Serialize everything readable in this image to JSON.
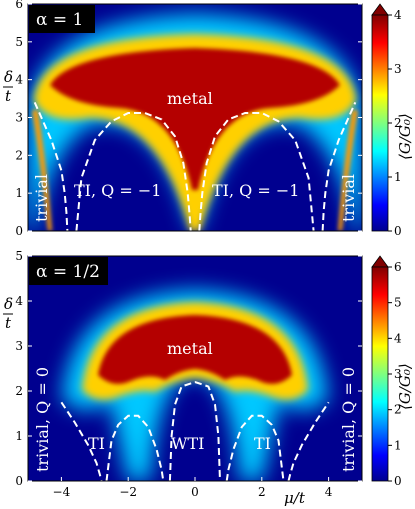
{
  "chart_data": [
    {
      "type": "heatmap",
      "tag": "α = 1",
      "xlim": [
        -5,
        5
      ],
      "ylim": [
        0,
        6
      ],
      "yticks": [
        "0",
        "1",
        "2",
        "3",
        "4",
        "5",
        "6"
      ],
      "ylabel_num": "δ",
      "ylabel_den": "t",
      "colorbar": {
        "label": "⟨G/G₀⟩",
        "range": [
          0,
          4
        ],
        "ticks": [
          "0",
          "1",
          "2",
          "3",
          "4"
        ]
      },
      "regions": [
        "metal",
        "TI, Q = −1",
        "TI, Q = −1",
        "trivial",
        "trivial"
      ],
      "phase_boundaries": [
        {
          "x": [
            -4.8,
            -4.6,
            -4.3,
            -4.0,
            -3.9,
            -3.85,
            -3.82
          ],
          "y": [
            3.4,
            3.0,
            2.4,
            1.6,
            1.0,
            0.5,
            0.0
          ]
        },
        {
          "x": [
            -3.55,
            -3.4,
            -3.0,
            -2.5,
            -2.0,
            -1.5,
            -1.0,
            -0.6,
            -0.35,
            -0.22,
            -0.16,
            -0.13
          ],
          "y": [
            0.0,
            1.4,
            2.4,
            2.9,
            3.12,
            3.12,
            2.95,
            2.5,
            1.8,
            1.0,
            0.4,
            0.0
          ]
        },
        {
          "x": [
            0.13,
            0.16,
            0.22,
            0.35,
            0.6,
            1.0,
            1.5,
            2.0,
            2.5,
            3.0,
            3.4,
            3.55
          ],
          "y": [
            0.0,
            0.4,
            1.0,
            1.8,
            2.5,
            2.95,
            3.12,
            3.12,
            2.9,
            2.4,
            1.4,
            0.0
          ]
        },
        {
          "x": [
            3.82,
            3.85,
            3.9,
            4.0,
            4.3,
            4.6,
            4.8
          ],
          "y": [
            0.0,
            0.5,
            1.0,
            1.6,
            2.4,
            3.0,
            3.4
          ]
        }
      ]
    },
    {
      "type": "heatmap",
      "tag": "α = 1/2",
      "xlim": [
        -5,
        5
      ],
      "ylim": [
        0,
        5
      ],
      "xticks": [
        "−4",
        "−2",
        "0",
        "2",
        "4"
      ],
      "yticks": [
        "0",
        "1",
        "2",
        "3",
        "4",
        "5"
      ],
      "xlabel_num": "μ",
      "xlabel_den": "t",
      "ylabel_num": "δ",
      "ylabel_den": "t",
      "colorbar": {
        "label": "⟨G/G₀⟩",
        "range": [
          0,
          6
        ],
        "ticks": [
          "0",
          "1",
          "2",
          "3",
          "4",
          "5",
          "6"
        ]
      },
      "regions": [
        "metal",
        "TI",
        "WTI",
        "TI",
        "trivial, Q = 0",
        "trivial, Q = 0"
      ],
      "phase_boundaries": [
        {
          "x": [
            -4.0,
            -3.6,
            -3.2,
            -2.95,
            -2.85,
            -2.8
          ],
          "y": [
            1.75,
            1.3,
            0.8,
            0.4,
            0.15,
            0.0
          ]
        },
        {
          "x": [
            -2.65,
            -2.5,
            -2.3,
            -2.0,
            -1.7,
            -1.4,
            -1.15,
            -1.0,
            -0.95
          ],
          "y": [
            0.0,
            0.9,
            1.25,
            1.45,
            1.45,
            1.2,
            0.7,
            0.25,
            0.0
          ]
        },
        {
          "x": [
            -0.75,
            -0.7,
            -0.6,
            -0.4,
            0.0,
            0.4,
            0.6,
            0.7,
            0.75
          ],
          "y": [
            0.0,
            1.0,
            1.7,
            2.1,
            2.2,
            2.1,
            1.7,
            1.0,
            0.0
          ]
        },
        {
          "x": [
            0.95,
            1.0,
            1.15,
            1.4,
            1.7,
            2.0,
            2.3,
            2.5,
            2.65
          ],
          "y": [
            0.0,
            0.25,
            0.7,
            1.2,
            1.45,
            1.45,
            1.25,
            0.9,
            0.0
          ]
        },
        {
          "x": [
            2.8,
            2.85,
            2.95,
            3.2,
            3.6,
            4.0
          ],
          "y": [
            0.0,
            0.15,
            0.4,
            0.8,
            1.3,
            1.75
          ]
        }
      ]
    }
  ]
}
